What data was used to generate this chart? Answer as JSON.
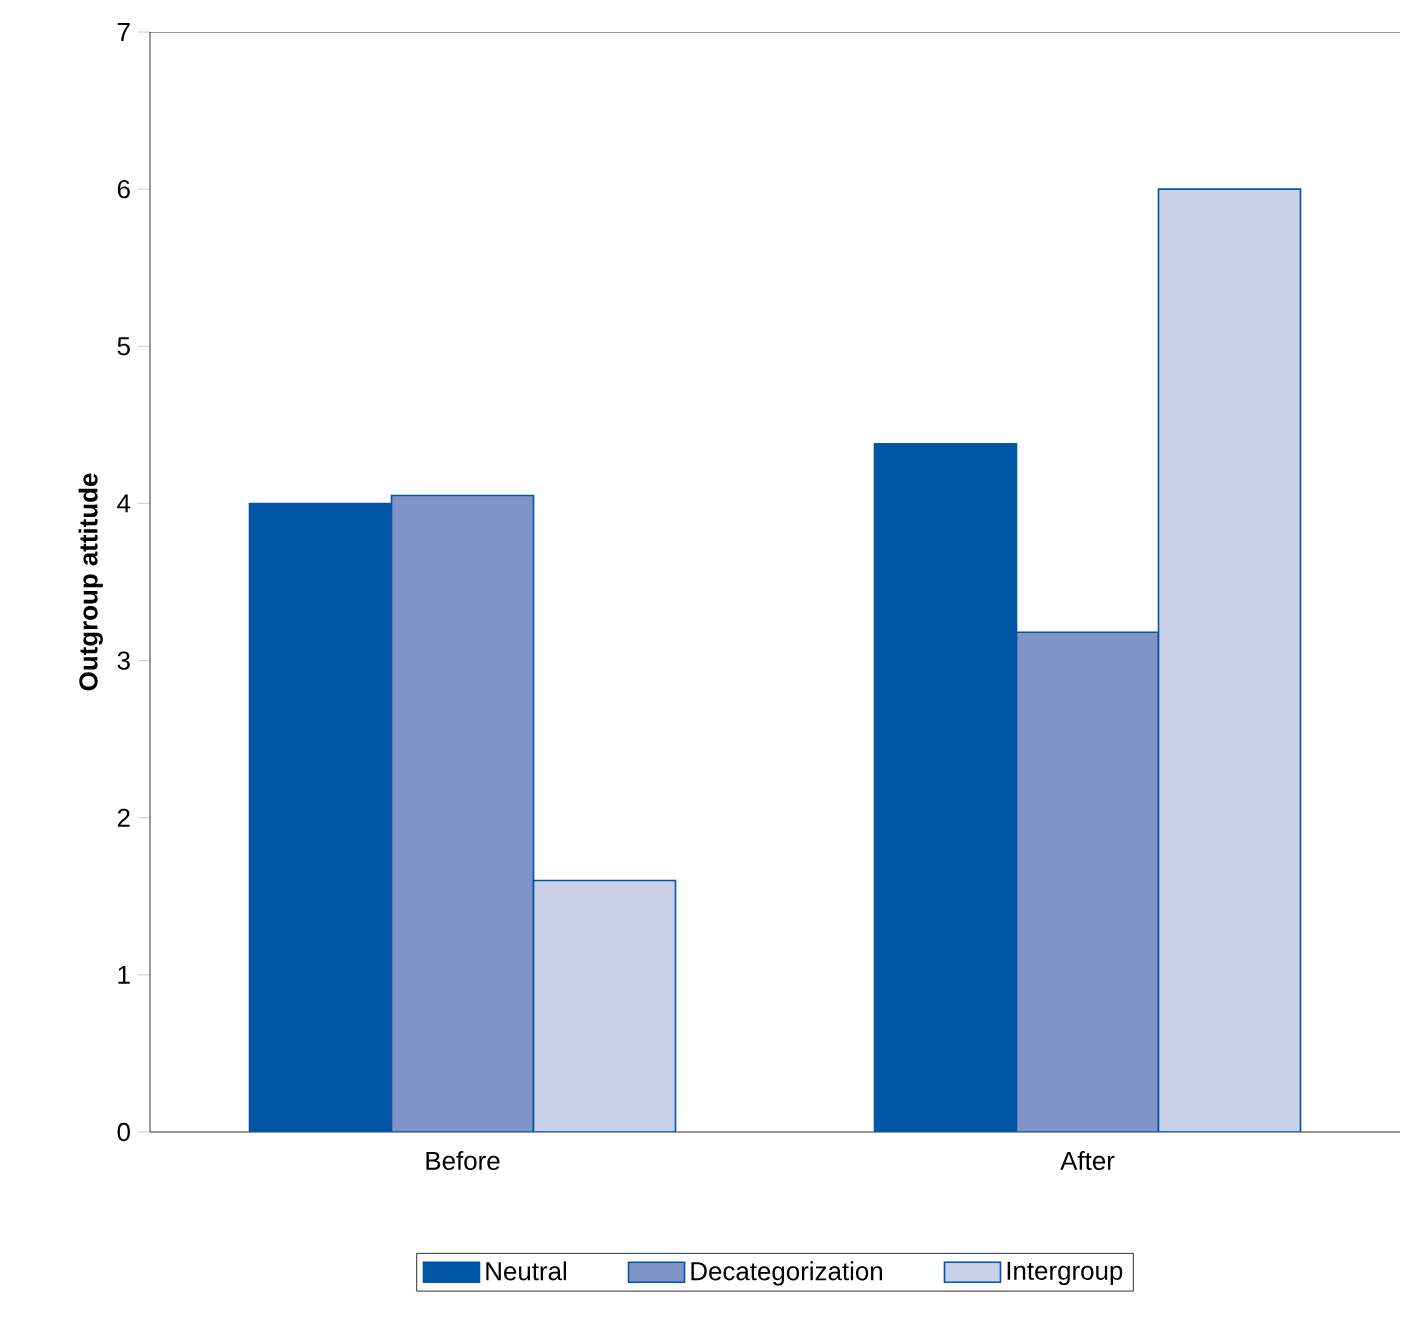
{
  "chart_data": {
    "type": "bar",
    "ylabel": "Outgroup attitude",
    "categories": [
      "Before",
      "After"
    ],
    "series": [
      {
        "name": "Neutral",
        "color": "#0055a5",
        "values": [
          4.0,
          4.38
        ]
      },
      {
        "name": "Decategorization",
        "color": "#8094c8",
        "values": [
          4.05,
          3.18
        ]
      },
      {
        "name": "Intergroup",
        "color": "#c8cfe6",
        "values": [
          1.6,
          6.0
        ]
      }
    ],
    "ylim": [
      0,
      7
    ],
    "yticks": [
      0,
      1,
      2,
      3,
      4,
      5,
      6,
      7
    ],
    "grid": false,
    "legend": "bottom"
  }
}
